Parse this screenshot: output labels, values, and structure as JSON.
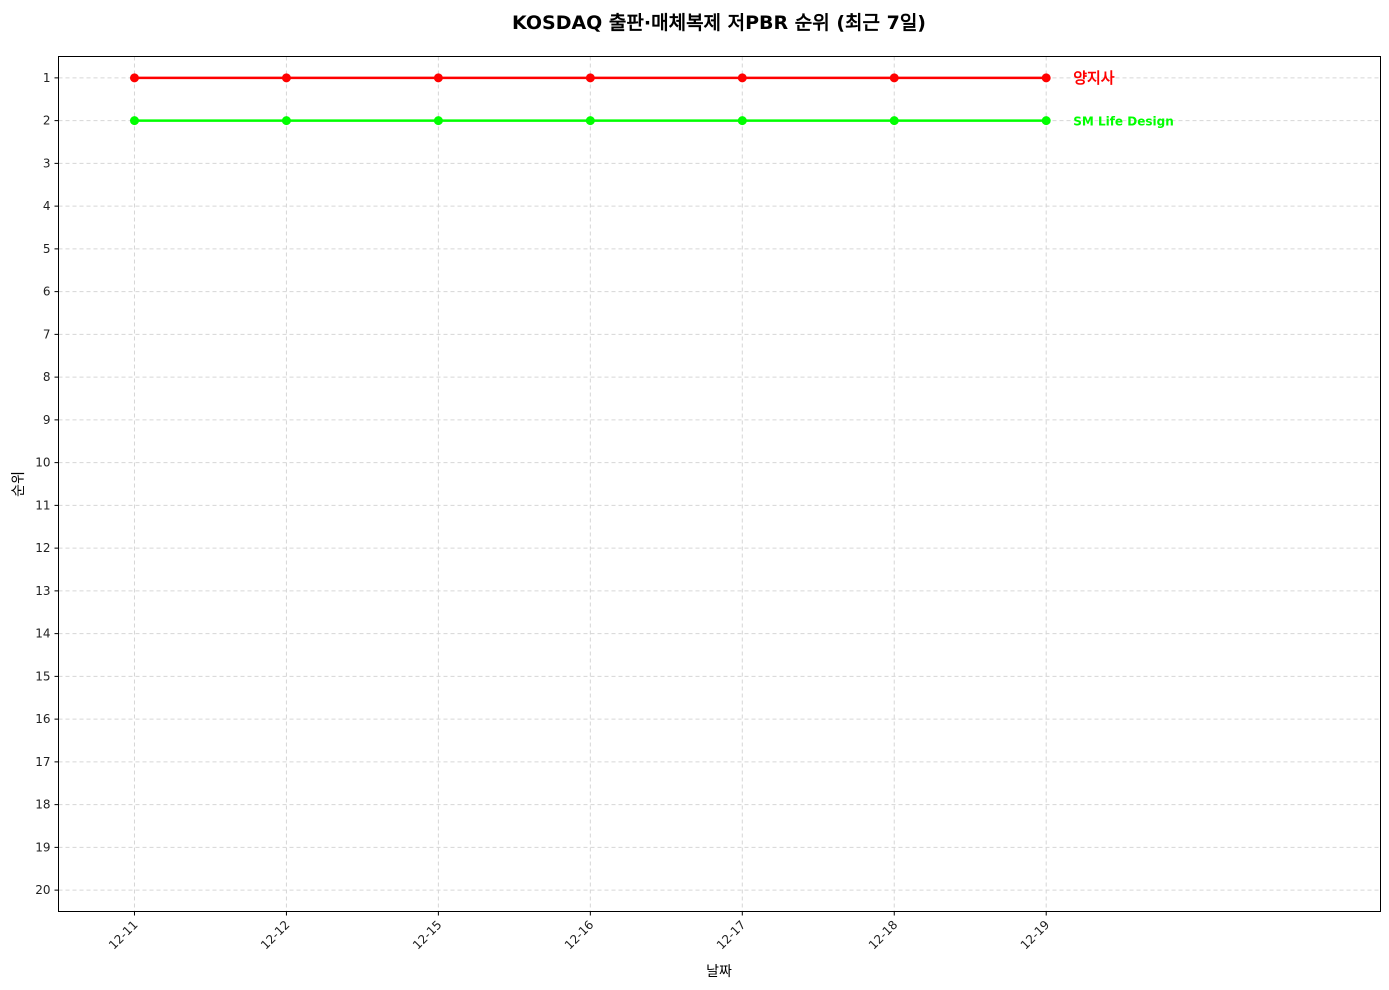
{
  "chart_data": {
    "type": "line",
    "title": "KOSDAQ 출판·매체복제 저PBR 순위 (최근 7일)",
    "xlabel": "날짜",
    "ylabel": "순위",
    "categories": [
      "12-11",
      "12-12",
      "12-15",
      "12-16",
      "12-17",
      "12-18",
      "12-19"
    ],
    "y_ticks": [
      1,
      2,
      3,
      4,
      5,
      6,
      7,
      8,
      9,
      10,
      11,
      12,
      13,
      14,
      15,
      16,
      17,
      18,
      19,
      20
    ],
    "ylim": [
      20.5,
      0.5
    ],
    "y_inverted": true,
    "grid": true,
    "legend": "inline labels at line ends",
    "series": [
      {
        "name": "양지사",
        "color": "#ff0000",
        "values": [
          1,
          1,
          1,
          1,
          1,
          1,
          1
        ]
      },
      {
        "name": "SM Life Design",
        "color": "#00ff00",
        "values": [
          2,
          2,
          2,
          2,
          2,
          2,
          2
        ]
      }
    ]
  }
}
